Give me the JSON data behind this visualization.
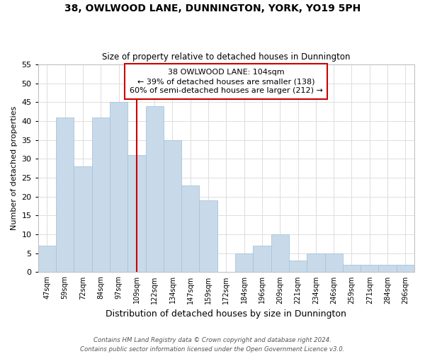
{
  "title": "38, OWLWOOD LANE, DUNNINGTON, YORK, YO19 5PH",
  "subtitle": "Size of property relative to detached houses in Dunnington",
  "xlabel": "Distribution of detached houses by size in Dunnington",
  "ylabel": "Number of detached properties",
  "bar_color": "#c8daea",
  "bar_edge_color": "#a8c4d8",
  "categories": [
    "47sqm",
    "59sqm",
    "72sqm",
    "84sqm",
    "97sqm",
    "109sqm",
    "122sqm",
    "134sqm",
    "147sqm",
    "159sqm",
    "172sqm",
    "184sqm",
    "196sqm",
    "209sqm",
    "221sqm",
    "234sqm",
    "246sqm",
    "259sqm",
    "271sqm",
    "284sqm",
    "296sqm"
  ],
  "values": [
    7,
    41,
    28,
    41,
    45,
    31,
    44,
    35,
    23,
    19,
    0,
    5,
    7,
    10,
    3,
    5,
    5,
    2,
    2,
    2,
    2
  ],
  "ylim": [
    0,
    55
  ],
  "yticks": [
    0,
    5,
    10,
    15,
    20,
    25,
    30,
    35,
    40,
    45,
    50,
    55
  ],
  "marker_color": "#cc0000",
  "annotation_line1": "38 OWLWOOD LANE: 104sqm",
  "annotation_line2": "← 39% of detached houses are smaller (138)",
  "annotation_line3": "60% of semi-detached houses are larger (212) →",
  "annotation_box_color": "#ffffff",
  "annotation_box_edge": "#cc0000",
  "footer_line1": "Contains HM Land Registry data © Crown copyright and database right 2024.",
  "footer_line2": "Contains public sector information licensed under the Open Government Licence v3.0.",
  "background_color": "#ffffff",
  "grid_color": "#dddddd"
}
